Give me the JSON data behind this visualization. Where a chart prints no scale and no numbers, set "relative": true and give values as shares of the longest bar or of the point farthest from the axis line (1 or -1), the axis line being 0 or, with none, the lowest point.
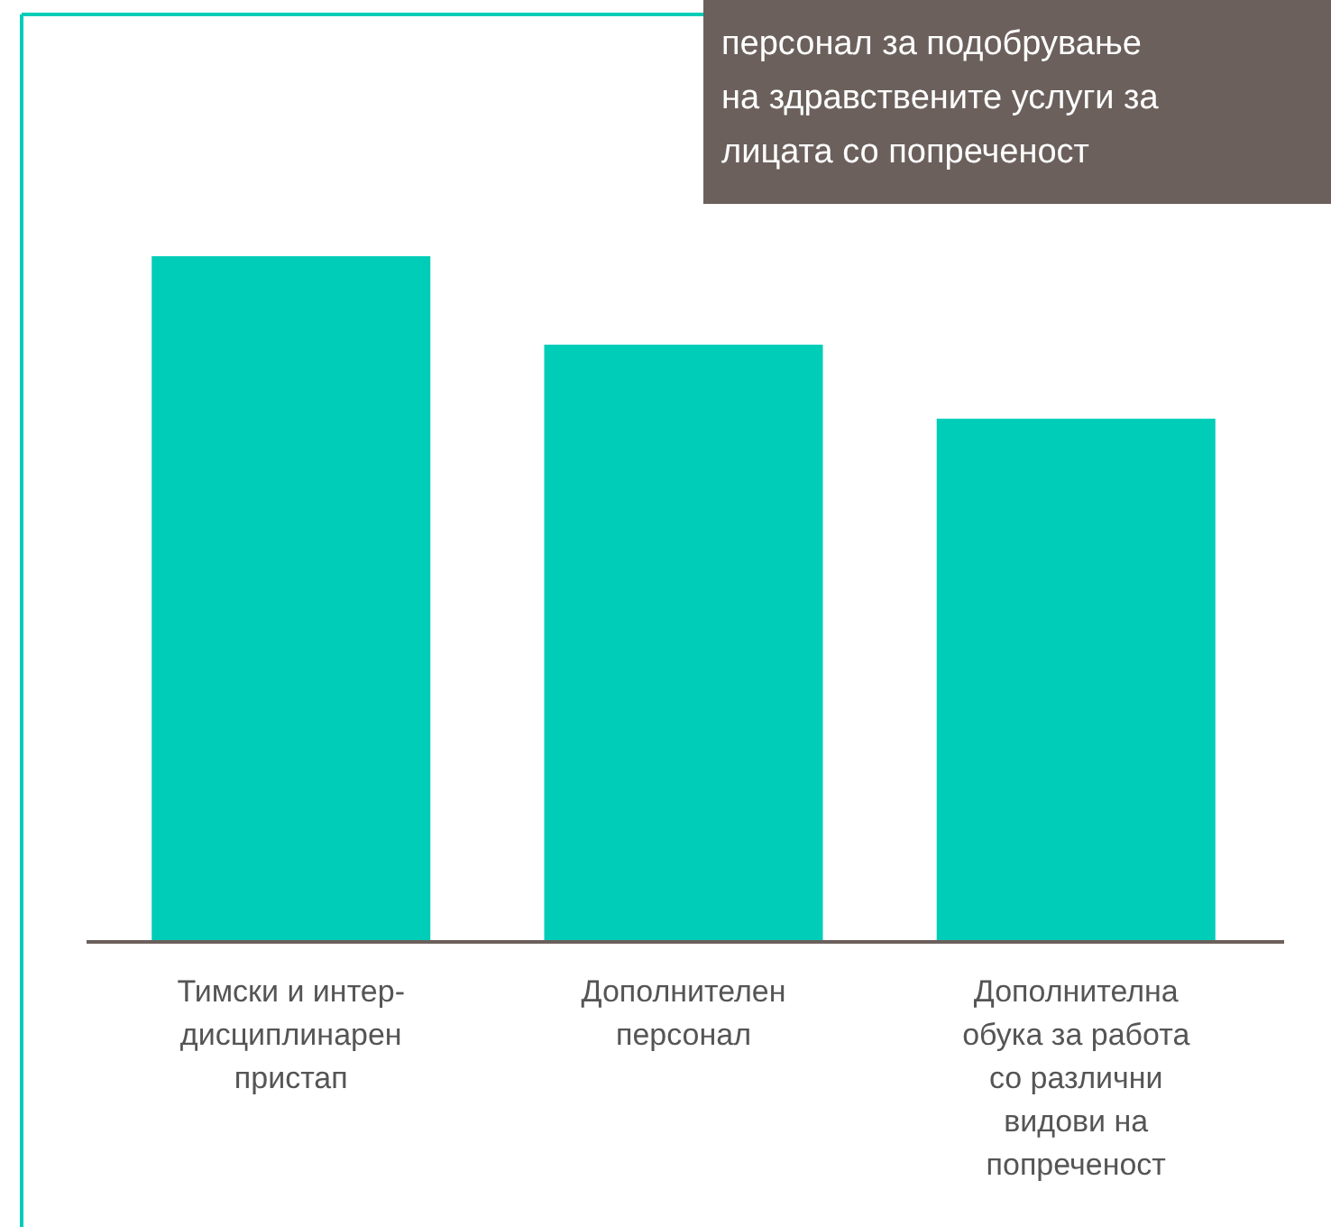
{
  "chart_data": {
    "type": "bar",
    "relative": true,
    "title": "персонал за подобрување\nна здравствените услуги за\nлицата со попреченост",
    "categories": [
      "Тимски и интер-\nдисциплинарен\nпристап",
      "Дополнителен\nперсонал",
      "Дополнителна\nобука за работа\nсо различни\nвидови на\nпопреченост"
    ],
    "values": [
      1,
      0.871,
      0.763
    ],
    "color": "#00cdb8"
  }
}
